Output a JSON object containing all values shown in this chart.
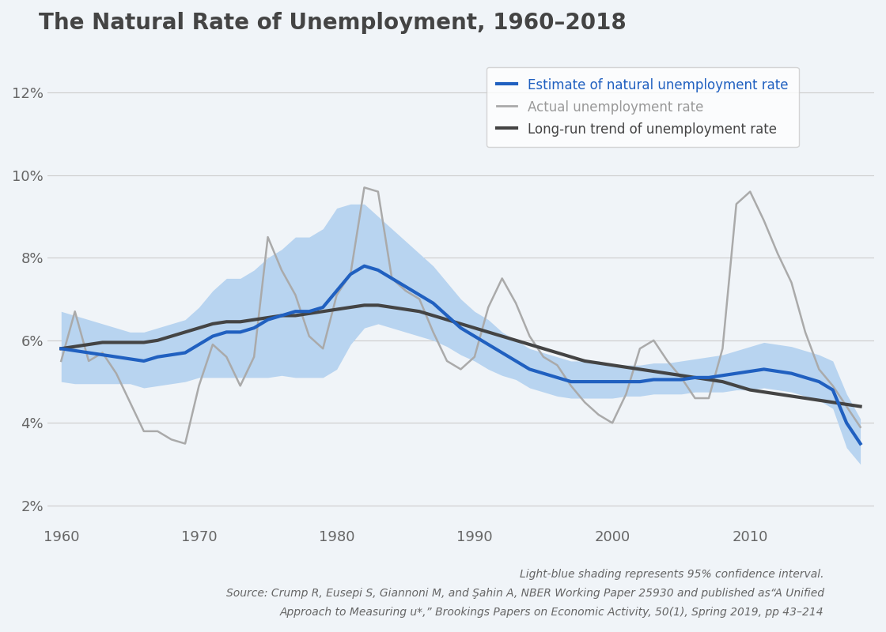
{
  "title": "The Natural Rate of Unemployment, 1960–2018",
  "background_color": "#f0f4f8",
  "plot_bg_color": "#f0f4f8",
  "title_color": "#444444",
  "title_fontsize": 20,
  "ylabel_ticks": [
    "2%",
    "4%",
    "6%",
    "8%",
    "10%",
    "12%"
  ],
  "ytick_vals": [
    2,
    4,
    6,
    8,
    10,
    12
  ],
  "ylim": [
    1.5,
    13.0
  ],
  "xlim": [
    1959,
    2019
  ],
  "xtick_vals": [
    1960,
    1970,
    1980,
    1990,
    2000,
    2010
  ],
  "footnote_line1": "Light-blue shading represents 95% confidence interval.",
  "footnote_line2": "Source: Crump R, Eusepi S, Giannoni M, and Şahin A, NBER Working Paper 25930 and published as“A Unified",
  "footnote_line3": "Approach to Measuring u*,” Brookings Papers on Economic Activity, 50(1), Spring 2019, pp 43–214",
  "legend_labels": [
    "Estimate of natural unemployment rate",
    "Actual unemployment rate",
    "Long-run trend of unemployment rate"
  ],
  "line_colors": {
    "estimate": "#2060c0",
    "actual": "#aaaaaa",
    "trend": "#444444"
  },
  "ci_color": "#b8d4f0",
  "years": [
    1960,
    1961,
    1962,
    1963,
    1964,
    1965,
    1966,
    1967,
    1968,
    1969,
    1970,
    1971,
    1972,
    1973,
    1974,
    1975,
    1976,
    1977,
    1978,
    1979,
    1980,
    1981,
    1982,
    1983,
    1984,
    1985,
    1986,
    1987,
    1988,
    1989,
    1990,
    1991,
    1992,
    1993,
    1994,
    1995,
    1996,
    1997,
    1998,
    1999,
    2000,
    2001,
    2002,
    2003,
    2004,
    2005,
    2006,
    2007,
    2008,
    2009,
    2010,
    2011,
    2012,
    2013,
    2014,
    2015,
    2016,
    2017,
    2018
  ],
  "estimate": [
    5.8,
    5.75,
    5.7,
    5.65,
    5.6,
    5.55,
    5.5,
    5.6,
    5.65,
    5.7,
    5.9,
    6.1,
    6.2,
    6.2,
    6.3,
    6.5,
    6.6,
    6.7,
    6.7,
    6.8,
    7.2,
    7.6,
    7.8,
    7.7,
    7.5,
    7.3,
    7.1,
    6.9,
    6.6,
    6.3,
    6.1,
    5.9,
    5.7,
    5.5,
    5.3,
    5.2,
    5.1,
    5.0,
    5.0,
    5.0,
    5.0,
    5.0,
    5.0,
    5.05,
    5.05,
    5.05,
    5.1,
    5.1,
    5.15,
    5.2,
    5.25,
    5.3,
    5.25,
    5.2,
    5.1,
    5.0,
    4.8,
    4.0,
    3.5
  ],
  "estimate_upper": [
    6.7,
    6.6,
    6.5,
    6.4,
    6.3,
    6.2,
    6.2,
    6.3,
    6.4,
    6.5,
    6.8,
    7.2,
    7.5,
    7.5,
    7.7,
    8.0,
    8.2,
    8.5,
    8.5,
    8.7,
    9.2,
    9.3,
    9.3,
    9.0,
    8.7,
    8.4,
    8.1,
    7.8,
    7.4,
    7.0,
    6.7,
    6.5,
    6.2,
    6.0,
    5.8,
    5.7,
    5.6,
    5.5,
    5.5,
    5.5,
    5.4,
    5.4,
    5.4,
    5.45,
    5.45,
    5.5,
    5.55,
    5.6,
    5.65,
    5.75,
    5.85,
    5.95,
    5.9,
    5.85,
    5.75,
    5.65,
    5.5,
    4.7,
    4.1
  ],
  "estimate_lower": [
    5.0,
    4.95,
    4.95,
    4.95,
    4.95,
    4.95,
    4.85,
    4.9,
    4.95,
    5.0,
    5.1,
    5.1,
    5.1,
    5.1,
    5.1,
    5.1,
    5.15,
    5.1,
    5.1,
    5.1,
    5.3,
    5.9,
    6.3,
    6.4,
    6.3,
    6.2,
    6.1,
    6.0,
    5.85,
    5.65,
    5.5,
    5.3,
    5.15,
    5.05,
    4.85,
    4.75,
    4.65,
    4.6,
    4.6,
    4.6,
    4.6,
    4.65,
    4.65,
    4.7,
    4.7,
    4.7,
    4.75,
    4.75,
    4.75,
    4.8,
    4.8,
    4.85,
    4.8,
    4.75,
    4.65,
    4.55,
    4.35,
    3.4,
    3.0
  ],
  "actual": [
    5.5,
    6.7,
    5.5,
    5.7,
    5.2,
    4.5,
    3.8,
    3.8,
    3.6,
    3.5,
    4.9,
    5.9,
    5.6,
    4.9,
    5.6,
    8.5,
    7.7,
    7.1,
    6.1,
    5.8,
    7.1,
    7.6,
    9.7,
    9.6,
    7.5,
    7.2,
    7.0,
    6.2,
    5.5,
    5.3,
    5.6,
    6.8,
    7.5,
    6.9,
    6.1,
    5.6,
    5.4,
    4.9,
    4.5,
    4.2,
    4.0,
    4.7,
    5.8,
    6.0,
    5.5,
    5.1,
    4.6,
    4.6,
    5.8,
    9.3,
    9.6,
    8.9,
    8.1,
    7.4,
    6.2,
    5.3,
    4.9,
    4.4,
    3.9
  ],
  "trend": [
    5.8,
    5.85,
    5.9,
    5.95,
    5.95,
    5.95,
    5.95,
    6.0,
    6.1,
    6.2,
    6.3,
    6.4,
    6.45,
    6.45,
    6.5,
    6.55,
    6.6,
    6.6,
    6.65,
    6.7,
    6.75,
    6.8,
    6.85,
    6.85,
    6.8,
    6.75,
    6.7,
    6.6,
    6.5,
    6.4,
    6.3,
    6.2,
    6.1,
    6.0,
    5.9,
    5.8,
    5.7,
    5.6,
    5.5,
    5.45,
    5.4,
    5.35,
    5.3,
    5.25,
    5.2,
    5.15,
    5.1,
    5.05,
    5.0,
    4.9,
    4.8,
    4.75,
    4.7,
    4.65,
    4.6,
    4.55,
    4.5,
    4.45,
    4.4
  ]
}
